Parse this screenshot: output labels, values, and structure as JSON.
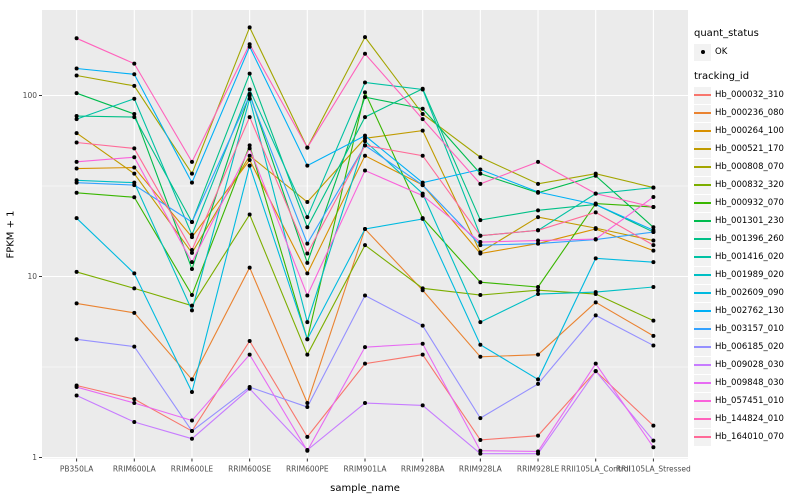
{
  "chart_data": {
    "type": "line",
    "xlabel": "sample_name",
    "ylabel": "FPKM + 1",
    "yscale": "log10",
    "ylim": [
      1,
      300
    ],
    "yticks": [
      1,
      10,
      100
    ],
    "minor_gridlines": [
      3.162,
      31.62
    ],
    "grid": "on",
    "panel_bg": "#EBEBEB",
    "grid_color": "#FFFFFF",
    "tick_label_color": "#4D4D4D",
    "point_color": "#000000",
    "legend": {
      "position": "right",
      "quant_status_title": "quant_status",
      "ok_label": "OK",
      "tracking_id_title": "tracking_id"
    },
    "categories": [
      "PB350LA",
      "RRIM600LA",
      "RRIM600LE",
      "RRIM600SE",
      "RRIM600PE",
      "RRIM901LA",
      "RRIM928BA",
      "RRIM928LA",
      "RRIM928LE",
      "RRII105LA_Control",
      "RRII105LA_Stressed"
    ],
    "series": [
      {
        "name": "Hb_000032_310",
        "color": "#F8766D",
        "values": [
          2.5,
          2.1,
          1.4,
          4.4,
          1.3,
          3.3,
          3.7,
          1.25,
          1.32,
          3.0,
          1.5
        ]
      },
      {
        "name": "Hb_000236_080",
        "color": "#EA8331",
        "values": [
          7.1,
          6.3,
          2.7,
          11.2,
          2.0,
          18.3,
          8.4,
          3.6,
          3.7,
          7.2,
          4.7
        ]
      },
      {
        "name": "Hb_000264_100",
        "color": "#D89000",
        "values": [
          39.5,
          40,
          16.5,
          44,
          10.4,
          46.5,
          32,
          13.4,
          15.2,
          18.3,
          13.9
        ]
      },
      {
        "name": "Hb_000521_170",
        "color": "#C09B00",
        "values": [
          62,
          37,
          13.5,
          46.5,
          25.8,
          58,
          64,
          13.6,
          21.3,
          18.5,
          15.8
        ]
      },
      {
        "name": "Hb_000808_070",
        "color": "#A3A500",
        "values": [
          129,
          113,
          37,
          238,
          51.5,
          210,
          79,
          45.6,
          32.5,
          37,
          31
        ]
      },
      {
        "name": "Hb_000832_320",
        "color": "#7CAE00",
        "values": [
          10.6,
          8.6,
          6.9,
          22,
          3.7,
          14.9,
          8.6,
          7.9,
          8.4,
          8.0,
          5.7
        ]
      },
      {
        "name": "Hb_000932_070",
        "color": "#39B600",
        "values": [
          29,
          27.4,
          7.9,
          53,
          4.5,
          104,
          21,
          9.3,
          8.75,
          25.3,
          24.2
        ]
      },
      {
        "name": "Hb_001301_230",
        "color": "#00BB4E",
        "values": [
          103,
          79,
          11,
          102,
          11.9,
          98,
          84.5,
          37,
          29,
          36,
          18.7
        ]
      },
      {
        "name": "Hb_001396_260",
        "color": "#00C087",
        "values": [
          77,
          76,
          20,
          132,
          18.7,
          76,
          109,
          20.5,
          23.2,
          25,
          17.6
        ]
      },
      {
        "name": "Hb_001416_020",
        "color": "#00C1A3",
        "values": [
          74,
          96,
          17,
          108,
          21.3,
          118,
          108,
          16.8,
          18,
          28.7,
          31
        ]
      },
      {
        "name": "Hb_001989_020",
        "color": "#00BFC4",
        "values": [
          34,
          33,
          6.5,
          96,
          5.6,
          56,
          28.7,
          5.6,
          8.0,
          8.2,
          8.75
        ]
      },
      {
        "name": "Hb_002609_090",
        "color": "#00BAE0",
        "values": [
          21,
          10.4,
          2.3,
          41,
          4.5,
          18.3,
          20.8,
          4.2,
          2.7,
          12.6,
          12
        ]
      },
      {
        "name": "Hb_002762_130",
        "color": "#00B0F6",
        "values": [
          141,
          131,
          33,
          186,
          41,
          60,
          33,
          39,
          29.3,
          25,
          18
        ]
      },
      {
        "name": "Hb_003157_010",
        "color": "#35A2FF",
        "values": [
          33,
          32,
          20,
          100,
          15.2,
          53,
          32,
          14.9,
          15.2,
          16,
          17.6
        ]
      },
      {
        "name": "Hb_006185_020",
        "color": "#9590FF",
        "values": [
          4.5,
          4.1,
          1.4,
          2.45,
          1.9,
          7.85,
          5.35,
          1.65,
          2.55,
          6.1,
          4.16
        ]
      },
      {
        "name": "Hb_009028_030",
        "color": "#C77CFF",
        "values": [
          2.2,
          1.57,
          1.27,
          2.4,
          1.1,
          2.0,
          1.94,
          1.05,
          1.05,
          3.0,
          1.24
        ]
      },
      {
        "name": "Hb_009848_030",
        "color": "#E76BF3",
        "values": [
          2.45,
          2.0,
          1.6,
          3.7,
          1.09,
          4.07,
          4.25,
          1.09,
          1.08,
          3.3,
          1.14
        ]
      },
      {
        "name": "Hb_057451_010",
        "color": "#FA62DB",
        "values": [
          43,
          45.6,
          12,
          51,
          7.85,
          38.5,
          28,
          15.5,
          15.8,
          16.1,
          27.5
        ]
      },
      {
        "name": "Hb_144824_010",
        "color": "#FF62BC",
        "values": [
          207,
          150,
          43,
          192,
          51.5,
          170,
          74,
          32.5,
          43,
          28.7,
          24.2
        ]
      },
      {
        "name": "Hb_164010_070",
        "color": "#FF6A98",
        "values": [
          55,
          51,
          14,
          76,
          13.4,
          53,
          46.5,
          16.8,
          18,
          22.6,
          14.9
        ]
      }
    ]
  }
}
